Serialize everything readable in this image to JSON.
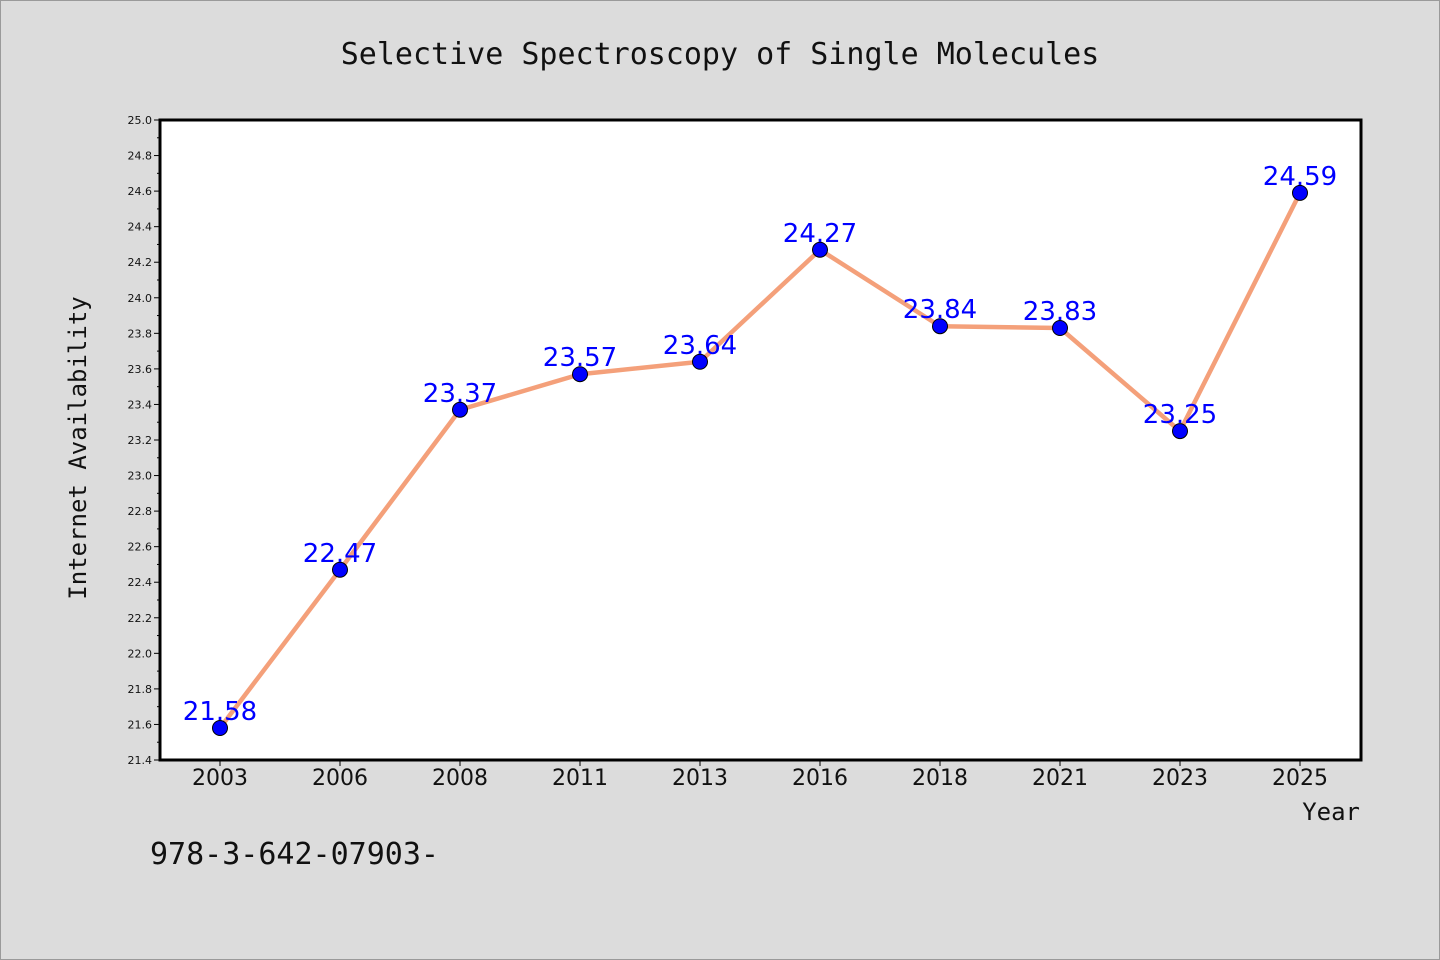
{
  "footer": {
    "text": "978-3-642-07903-"
  },
  "chart_data": {
    "type": "line",
    "title": "Selective Spectroscopy of Single Molecules",
    "xlabel": "Year",
    "ylabel": "Internet Availability",
    "categories": [
      "2003",
      "2006",
      "2008",
      "2011",
      "2013",
      "2016",
      "2018",
      "2021",
      "2023",
      "2025"
    ],
    "series": [
      {
        "values": [
          21.58,
          22.47,
          23.37,
          23.57,
          23.64,
          24.27,
          23.84,
          23.83,
          23.25,
          24.59
        ]
      }
    ],
    "data_labels": [
      "21.58",
      "22.47",
      "23.37",
      "23.57",
      "23.64",
      "24.27",
      "23.84",
      "23.83",
      "23.25",
      "24.59"
    ],
    "ylim": [
      21.4,
      25.0
    ],
    "yticks": [
      "21.4",
      "21.6",
      "21.8",
      "22.0",
      "22.2",
      "22.4",
      "22.6",
      "22.8",
      "23.0",
      "23.2",
      "23.4",
      "23.6",
      "23.8",
      "24.0",
      "24.2",
      "24.4",
      "24.6",
      "24.8",
      "25.0"
    ],
    "grid": false,
    "line_color": "#f4a07a",
    "marker_color": "#0000ff",
    "label_color": "#0000ff"
  }
}
